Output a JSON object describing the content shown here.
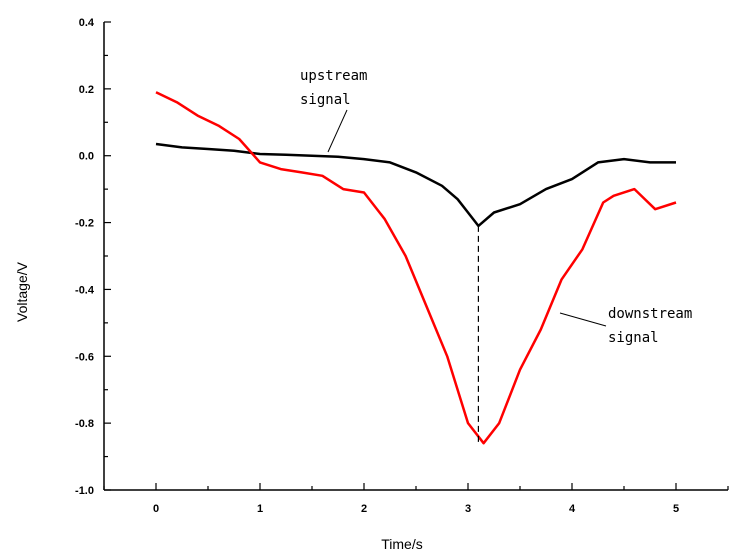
{
  "chart_data": {
    "type": "line",
    "xlabel": "Time/s",
    "ylabel": "Voltage/V",
    "xlim": [
      -0.5,
      5.5
    ],
    "ylim": [
      -1.0,
      0.4
    ],
    "xticks": [
      0,
      1,
      2,
      3,
      4,
      5
    ],
    "xtick_labels": [
      "0",
      "1",
      "2",
      "3",
      "4",
      "5"
    ],
    "yticks": [
      -1.0,
      -0.8,
      -0.6,
      -0.4,
      -0.2,
      0.0,
      0.2,
      0.4
    ],
    "ytick_labels": [
      "-1.0",
      "-0.8",
      "-0.6",
      "-0.4",
      "-0.2",
      "0.0",
      "0.2",
      "0.4"
    ],
    "grid": false,
    "series": [
      {
        "name": "upstream signal",
        "color": "#000000",
        "x": [
          0,
          0.25,
          0.5,
          0.75,
          1.0,
          1.25,
          1.5,
          1.75,
          2.0,
          2.25,
          2.5,
          2.75,
          2.9,
          3.0,
          3.1,
          3.25,
          3.5,
          3.75,
          4.0,
          4.25,
          4.5,
          4.75,
          5.0
        ],
        "values": [
          0.035,
          0.025,
          0.02,
          0.015,
          0.005,
          0.003,
          0.0,
          -0.003,
          -0.01,
          -0.02,
          -0.05,
          -0.09,
          -0.13,
          -0.17,
          -0.21,
          -0.17,
          -0.145,
          -0.1,
          -0.07,
          -0.02,
          -0.01,
          -0.02,
          -0.02
        ]
      },
      {
        "name": "downstream signal",
        "color": "#ff0000",
        "x": [
          0,
          0.2,
          0.4,
          0.6,
          0.8,
          1.0,
          1.2,
          1.4,
          1.6,
          1.8,
          2.0,
          2.2,
          2.4,
          2.6,
          2.8,
          3.0,
          3.15,
          3.3,
          3.5,
          3.7,
          3.9,
          4.1,
          4.3,
          4.4,
          4.6,
          4.8,
          5.0
        ],
        "values": [
          0.19,
          0.16,
          0.12,
          0.09,
          0.05,
          -0.02,
          -0.04,
          -0.05,
          -0.06,
          -0.1,
          -0.11,
          -0.19,
          -0.3,
          -0.45,
          -0.6,
          -0.8,
          -0.86,
          -0.8,
          -0.64,
          -0.52,
          -0.37,
          -0.28,
          -0.14,
          -0.12,
          -0.1,
          -0.16,
          -0.14
        ]
      }
    ],
    "dashed_marker": {
      "x": 3.1,
      "y_from": -0.21,
      "y_to": -0.86
    },
    "annotations": [
      {
        "lines": [
          "upstream",
          "signal"
        ],
        "series": "upstream signal"
      },
      {
        "lines": [
          "downstream",
          "signal"
        ],
        "series": "downstream signal"
      }
    ]
  }
}
